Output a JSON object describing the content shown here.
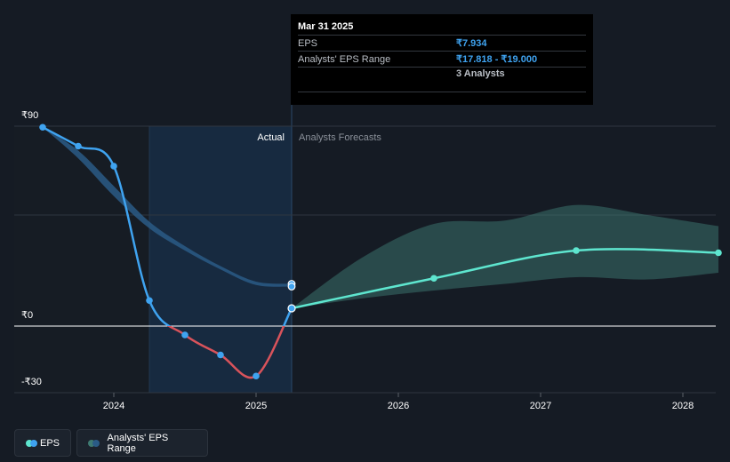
{
  "chart_data": {
    "type": "line",
    "y_tick_labels": [
      "₹90",
      "₹0",
      "-₹30"
    ],
    "ylim": [
      -30,
      90
    ],
    "x_ticks": [
      2024,
      2025,
      2026,
      2027,
      2028
    ],
    "x_tick_labels": [
      "2024",
      "2025",
      "2026",
      "2027",
      "2028"
    ],
    "xlim": [
      2023.45,
      2028.25
    ],
    "region_labels": {
      "actual": "Actual",
      "forecast": "Analysts Forecasts"
    },
    "actual_start": 2024.25,
    "divider": 2025.25,
    "series": [
      {
        "name": "EPS",
        "color": "#3fa3f0",
        "negative_color": "#d9535b",
        "x": [
          2023.5,
          2023.75,
          2024.0,
          2024.25,
          2024.5,
          2024.75,
          2025.0,
          2025.25
        ],
        "y": [
          89.5,
          81,
          72,
          11.5,
          -4,
          -13,
          -22.5,
          8
        ]
      },
      {
        "name": "EPS Forecast",
        "color": "#5ee6cf",
        "x": [
          2025.25,
          2026.25,
          2027.25,
          2028.25
        ],
        "y": [
          8,
          21.5,
          34,
          33
        ]
      },
      {
        "name": "Past Analysts' EPS Range",
        "color": "#2a5b86",
        "x": [
          2023.5,
          2023.75,
          2024.0,
          2024.25,
          2024.5,
          2024.75,
          2025.0,
          2025.25
        ],
        "low": [
          89.5,
          75.5,
          58.5,
          44,
          34,
          25.5,
          18.5,
          17.8
        ],
        "high": [
          89.5,
          79,
          63,
          47,
          36,
          27,
          20,
          19.0
        ]
      },
      {
        "name": "Analysts' EPS Range",
        "color": "#3e7a72",
        "x": [
          2025.25,
          2025.75,
          2026.25,
          2026.75,
          2027.25,
          2027.75,
          2028.25
        ],
        "low": [
          8,
          12.5,
          16,
          19,
          22,
          21,
          24
        ],
        "high": [
          8,
          31,
          46,
          47.5,
          54.5,
          50,
          45
        ]
      }
    ],
    "tooltip": {
      "date": "Mar 31 2025",
      "rows": [
        {
          "label": "EPS",
          "value": "₹7.934"
        },
        {
          "label": "Analysts' EPS Range",
          "value": "₹17.818 - ₹19.000"
        }
      ],
      "analysts": "3 Analysts"
    },
    "legend": [
      {
        "label": "EPS",
        "colors": [
          "#5ee6cf",
          "#3fa3f0"
        ]
      },
      {
        "label": "Analysts' EPS Range",
        "colors": [
          "#3e7a72",
          "#2a5b86"
        ]
      }
    ]
  }
}
